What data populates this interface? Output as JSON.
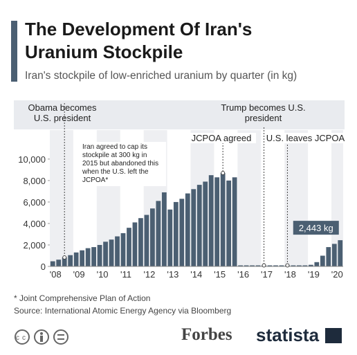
{
  "chart_data": {
    "type": "bar",
    "title": "The Development Of Iran's Uranium Stockpile",
    "subtitle": "Iran's stockpile of low-enriched uranium by quarter (in kg)",
    "categories": [
      "'08",
      null,
      null,
      null,
      "'09",
      null,
      null,
      null,
      "'10",
      null,
      null,
      null,
      "'11",
      null,
      null,
      null,
      "'12",
      null,
      null,
      null,
      "'13",
      null,
      null,
      null,
      "'14",
      null,
      null,
      null,
      "'15",
      null,
      null,
      null,
      "'16",
      null,
      null,
      null,
      "'17",
      null,
      null,
      null,
      "'18",
      null,
      null,
      null,
      "'19",
      null,
      null,
      null,
      "'20",
      null
    ],
    "values": [
      480,
      630,
      840,
      1050,
      1300,
      1500,
      1700,
      1800,
      2000,
      2300,
      2500,
      2800,
      3100,
      3600,
      4100,
      4500,
      4800,
      5400,
      6100,
      6900,
      5300,
      6000,
      6300,
      6800,
      7200,
      7600,
      7900,
      8500,
      8300,
      8700,
      8000,
      8300,
      100,
      100,
      100,
      100,
      100,
      100,
      100,
      100,
      100,
      100,
      100,
      100,
      150,
      400,
      1000,
      1800,
      2100,
      2443
    ],
    "value_labels": [
      null,
      null,
      null,
      null,
      null,
      null,
      null,
      null,
      null,
      null,
      null,
      null,
      null,
      null,
      null,
      null,
      null,
      null,
      null,
      null,
      null,
      null,
      null,
      null,
      null,
      null,
      null,
      null,
      null,
      null,
      null,
      null,
      null,
      null,
      null,
      null,
      null,
      null,
      null,
      null,
      null,
      null,
      null,
      null,
      null,
      null,
      null,
      null,
      null,
      "2,443 kg"
    ],
    "color": "#4b5f72",
    "ylim": [
      0,
      12700
    ],
    "yticks": [
      0,
      {
        "value": 2000,
        "label": "2,000"
      },
      {
        "value": 4000,
        "label": "4,000"
      },
      {
        "value": 6000,
        "label": "6,000"
      },
      {
        "value": 8000,
        "label": "8,000"
      },
      {
        "value": 10000,
        "label": "10,000"
      }
    ],
    "annotations": [
      "Obama becomes U.S. president",
      "JCPOA agreed",
      "Trump becomes U.S. president",
      "U.S. leaves JCPOA",
      "Iran agreed to cap its stockpile at 300 kg in 2015 but abandoned this when the U.S. left the JCPOA*"
    ],
    "footnote": "* Joint Comprehensive Plan of Action",
    "source": "Source: International Atomic Energy Agency via Bloomberg",
    "brands": [
      "Forbes",
      "statista"
    ]
  }
}
